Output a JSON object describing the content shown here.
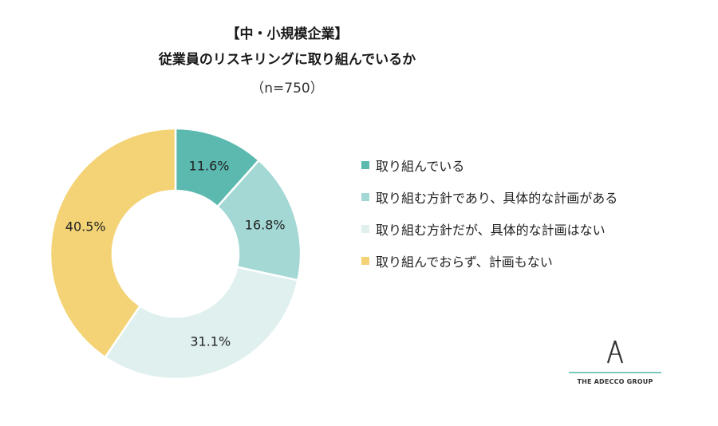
{
  "title_line1": "【中・小規模企業】",
  "title_line2": "従業員のリスキリングに取り組んでいるか",
  "title_n": "（n=750）",
  "chart_data": {
    "type": "pie",
    "donut": true,
    "categories": [
      "取り組んでいる",
      "取り組む方針であり、具体的な計画がある",
      "取り組む方針だが、具体的な計画はない",
      "取り組んでおらず、計画もない"
    ],
    "values": [
      11.6,
      16.8,
      31.1,
      40.5
    ],
    "labels": [
      "11.6%",
      "16.8%",
      "31.1%",
      "40.5%"
    ],
    "colors": [
      "#5bb9b0",
      "#a3d8d4",
      "#dff0ef",
      "#f3d375"
    ],
    "legend_position": "right"
  },
  "logo": {
    "icon": "adecco-a-icon",
    "text": "THE ADECCO GROUP"
  }
}
